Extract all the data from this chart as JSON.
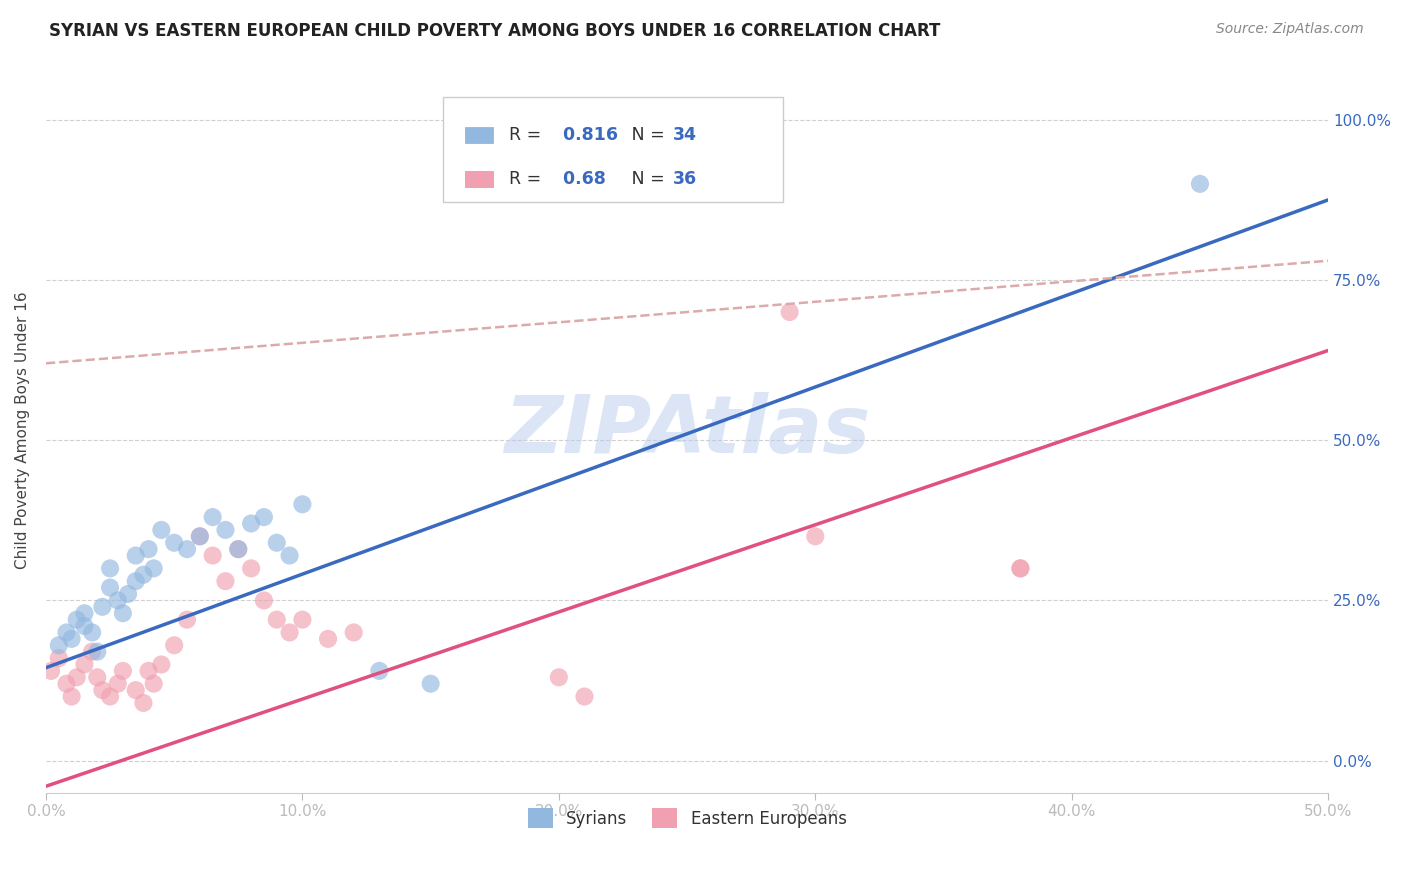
{
  "title": "SYRIAN VS EASTERN EUROPEAN CHILD POVERTY AMONG BOYS UNDER 16 CORRELATION CHART",
  "source": "Source: ZipAtlas.com",
  "ylabel_label": "Child Poverty Among Boys Under 16",
  "xlim": [
    0.0,
    0.5
  ],
  "ylim": [
    -0.05,
    1.08
  ],
  "r_blue": 0.816,
  "n_blue": 34,
  "r_pink": 0.68,
  "n_pink": 36,
  "blue_color": "#92b8e0",
  "pink_color": "#f0a0b0",
  "line_blue_color": "#3a6abf",
  "line_pink_color": "#e05080",
  "dashed_line_color": "#ddaaaa",
  "watermark": "ZIPAtlas",
  "watermark_color": "#b8ccee",
  "legend_label_blue": "Syrians",
  "legend_label_pink": "Eastern Europeans",
  "blue_scatter": [
    [
      0.005,
      0.18
    ],
    [
      0.008,
      0.2
    ],
    [
      0.01,
      0.19
    ],
    [
      0.012,
      0.22
    ],
    [
      0.015,
      0.23
    ],
    [
      0.015,
      0.21
    ],
    [
      0.018,
      0.2
    ],
    [
      0.02,
      0.17
    ],
    [
      0.022,
      0.24
    ],
    [
      0.025,
      0.27
    ],
    [
      0.025,
      0.3
    ],
    [
      0.028,
      0.25
    ],
    [
      0.03,
      0.23
    ],
    [
      0.032,
      0.26
    ],
    [
      0.035,
      0.28
    ],
    [
      0.035,
      0.32
    ],
    [
      0.038,
      0.29
    ],
    [
      0.04,
      0.33
    ],
    [
      0.042,
      0.3
    ],
    [
      0.045,
      0.36
    ],
    [
      0.05,
      0.34
    ],
    [
      0.055,
      0.33
    ],
    [
      0.06,
      0.35
    ],
    [
      0.065,
      0.38
    ],
    [
      0.07,
      0.36
    ],
    [
      0.075,
      0.33
    ],
    [
      0.08,
      0.37
    ],
    [
      0.085,
      0.38
    ],
    [
      0.09,
      0.34
    ],
    [
      0.095,
      0.32
    ],
    [
      0.1,
      0.4
    ],
    [
      0.13,
      0.14
    ],
    [
      0.15,
      0.12
    ],
    [
      0.45,
      0.9
    ]
  ],
  "pink_scatter": [
    [
      0.002,
      0.14
    ],
    [
      0.005,
      0.16
    ],
    [
      0.008,
      0.12
    ],
    [
      0.01,
      0.1
    ],
    [
      0.012,
      0.13
    ],
    [
      0.015,
      0.15
    ],
    [
      0.018,
      0.17
    ],
    [
      0.02,
      0.13
    ],
    [
      0.022,
      0.11
    ],
    [
      0.025,
      0.1
    ],
    [
      0.028,
      0.12
    ],
    [
      0.03,
      0.14
    ],
    [
      0.035,
      0.11
    ],
    [
      0.038,
      0.09
    ],
    [
      0.04,
      0.14
    ],
    [
      0.042,
      0.12
    ],
    [
      0.045,
      0.15
    ],
    [
      0.05,
      0.18
    ],
    [
      0.055,
      0.22
    ],
    [
      0.06,
      0.35
    ],
    [
      0.065,
      0.32
    ],
    [
      0.07,
      0.28
    ],
    [
      0.075,
      0.33
    ],
    [
      0.08,
      0.3
    ],
    [
      0.085,
      0.25
    ],
    [
      0.09,
      0.22
    ],
    [
      0.095,
      0.2
    ],
    [
      0.1,
      0.22
    ],
    [
      0.11,
      0.19
    ],
    [
      0.12,
      0.2
    ],
    [
      0.2,
      0.13
    ],
    [
      0.21,
      0.1
    ],
    [
      0.3,
      0.35
    ],
    [
      0.38,
      0.3
    ],
    [
      0.29,
      0.7
    ],
    [
      0.38,
      0.3
    ]
  ],
  "blue_line_x": [
    0.0,
    0.5
  ],
  "blue_line_y": [
    0.145,
    0.875
  ],
  "pink_line_x": [
    0.0,
    0.5
  ],
  "pink_line_y": [
    -0.04,
    0.64
  ],
  "dashed_line_x": [
    0.0,
    0.5
  ],
  "dashed_line_y": [
    0.62,
    0.78
  ]
}
